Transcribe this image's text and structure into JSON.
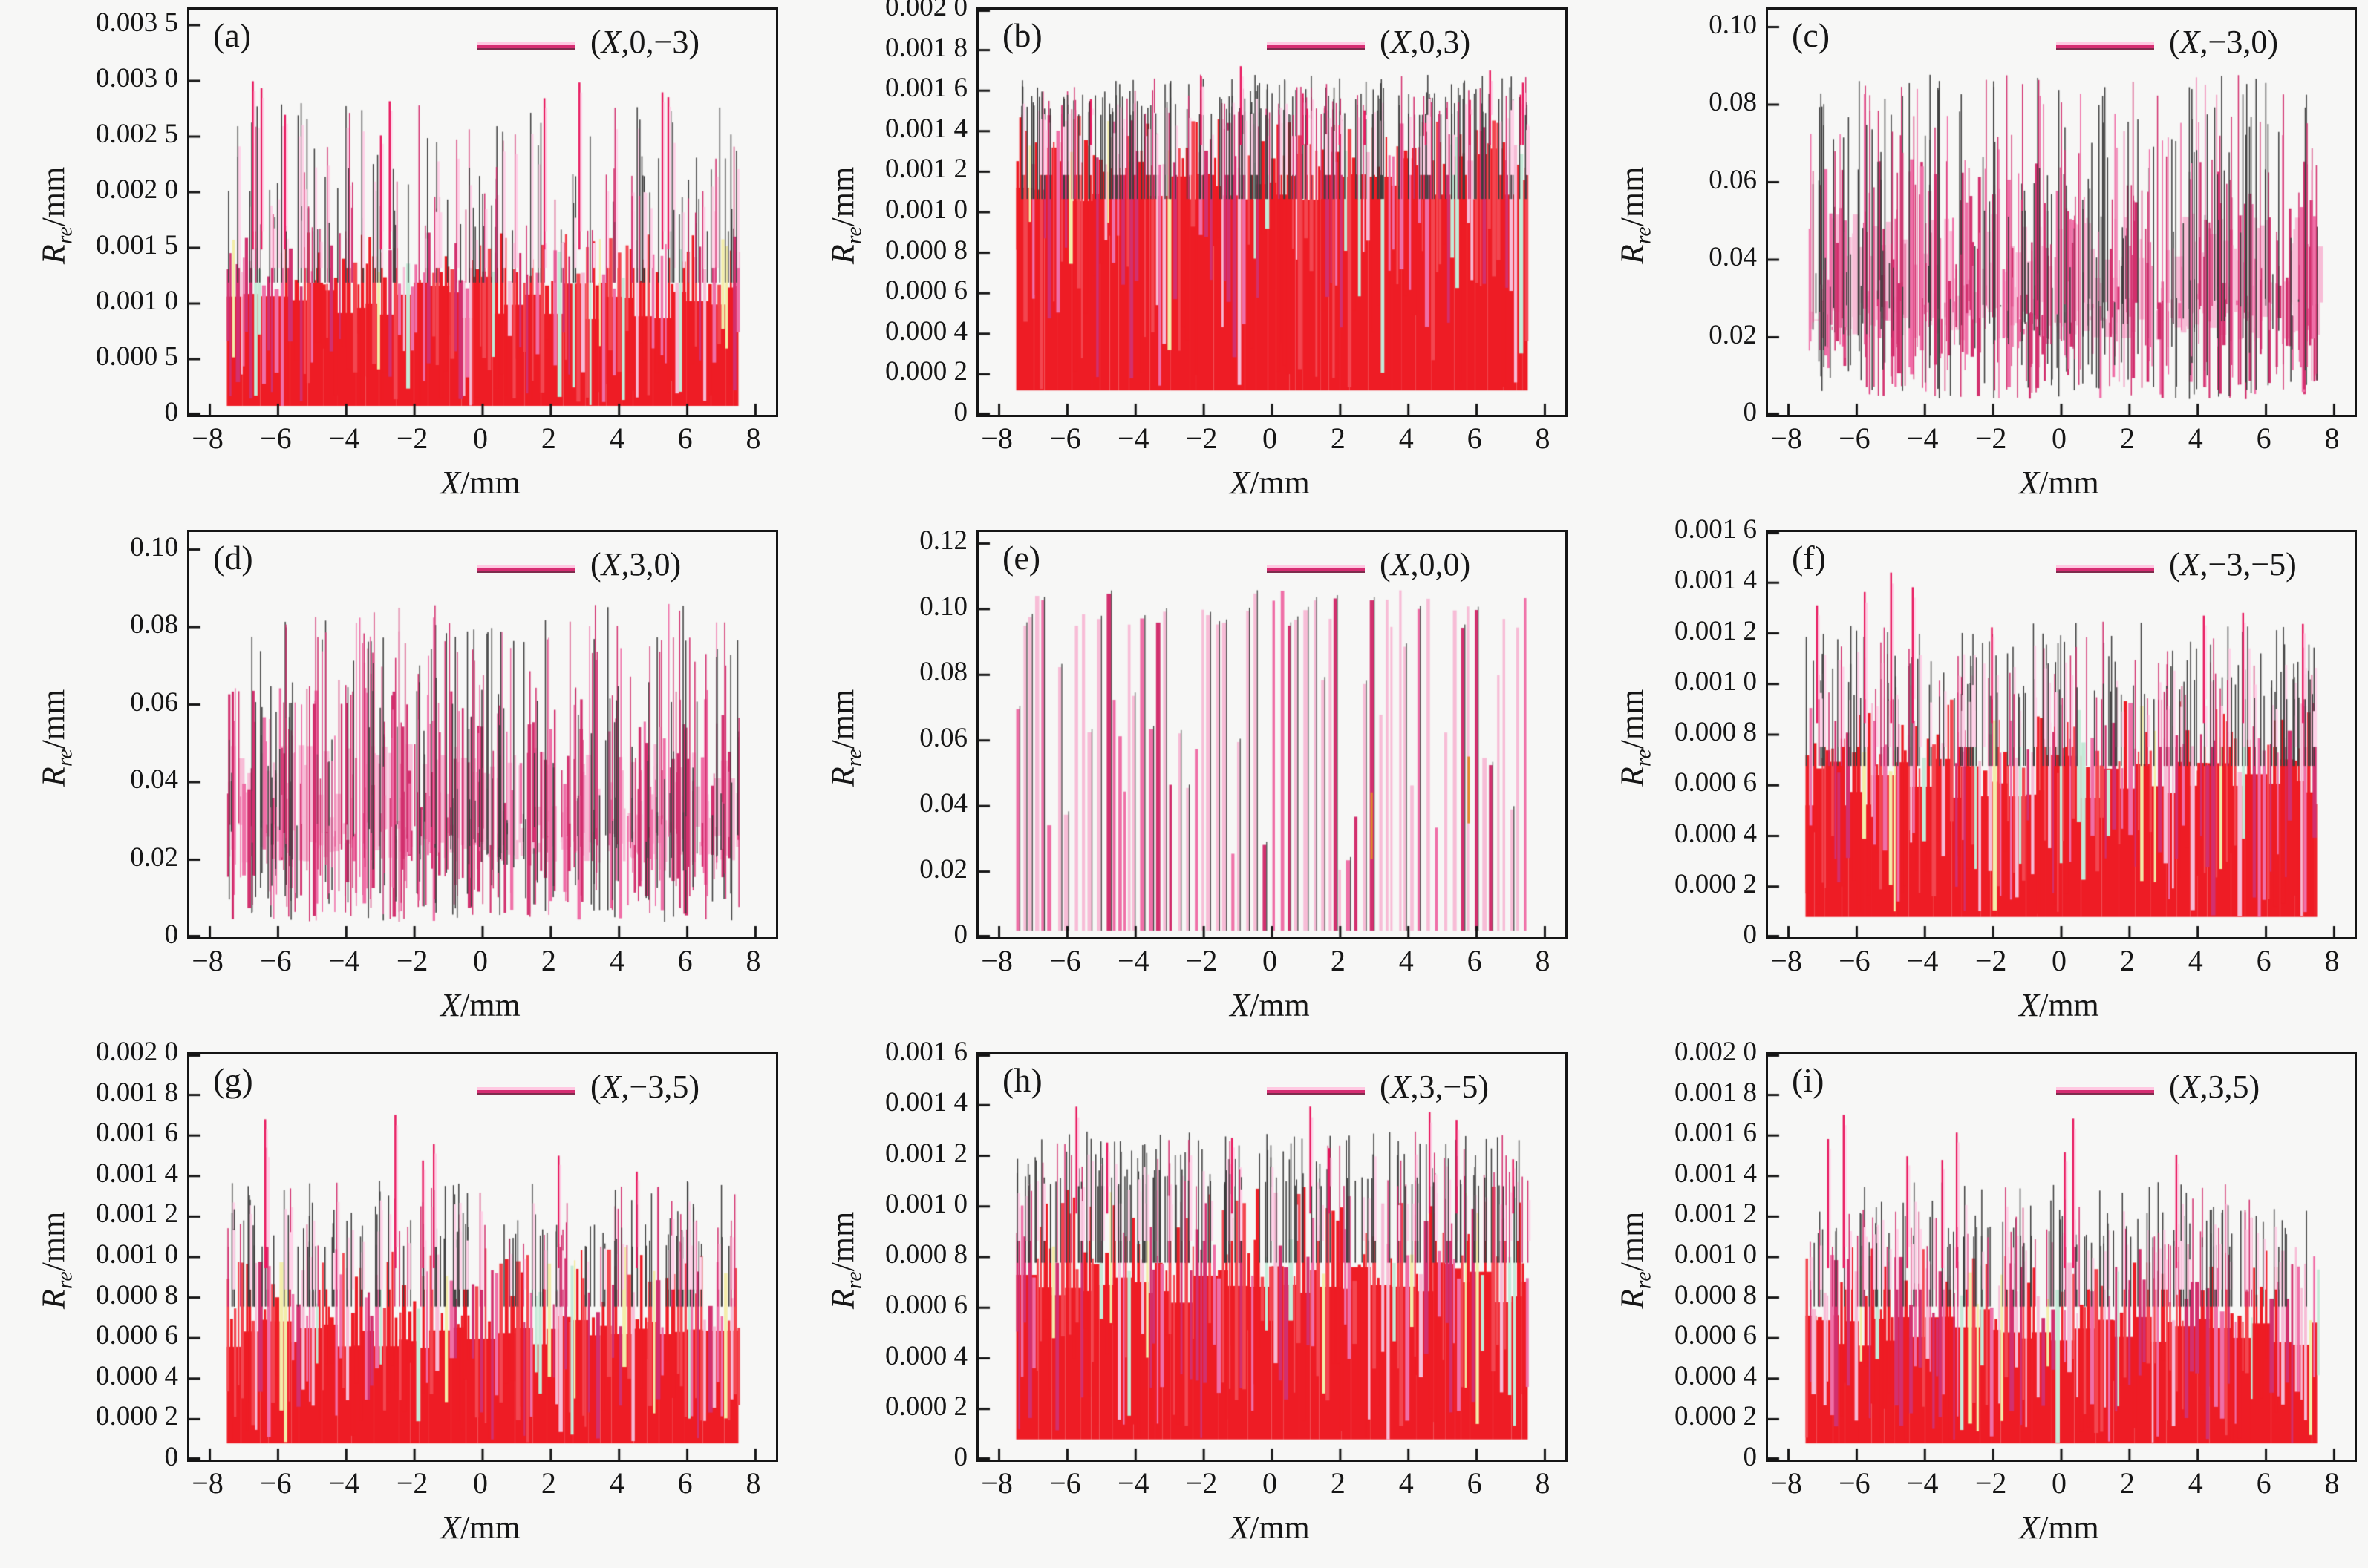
{
  "figure": {
    "background": "#f7f7f6",
    "frame_color": "#151515",
    "y_axis_title": {
      "variable": "R",
      "subscript": "re",
      "unit": "/mm"
    },
    "x_axis_title": {
      "variable": "X",
      "unit": "/mm"
    },
    "x_tick_values": [
      -8,
      -6,
      -4,
      -2,
      0,
      2,
      4,
      6,
      8
    ],
    "x_tick_labels": [
      "−8",
      "−6",
      "−4",
      "−2",
      "0",
      "2",
      "4",
      "6",
      "8"
    ]
  },
  "colors": {
    "red": "#ee1c25",
    "red2": "#f34650",
    "crimson": "#d2306e",
    "pink": "#ef6fa7",
    "lightpink": "#f7bcd6",
    "pinkhalo": "#ffd2e8",
    "paleyellow": "#f3edaa",
    "palecyan": "#c5ead8",
    "dark": "#3d3d3d",
    "accent": "#e8175d",
    "orange": "#e0862c"
  },
  "chart_data": {
    "type": "line",
    "title": "",
    "xlabel": "X/mm",
    "ylabel": "R_re/mm",
    "x_data_range": [
      -7.5,
      7.5
    ],
    "x_axis_range": [
      -8.6,
      8.6
    ],
    "grid": false,
    "legend_position": "upper right inside",
    "panels": [
      {
        "tag": "(a)",
        "legend": "(X,0,−3)",
        "ylim": [
          0,
          0.00364
        ],
        "y_tick_values": [
          0,
          0.0005,
          0.001,
          0.0015,
          0.002,
          0.0025,
          0.003,
          0.0035
        ],
        "y_tick_labels": [
          "0",
          "0.000 5",
          "0.001 0",
          "0.001 5",
          "0.002 0",
          "0.002 5",
          "0.003 0",
          "0.003 5"
        ],
        "signal": {
          "style": "fill",
          "seed": 11,
          "base": 8e-05,
          "solid": [
            0.00085,
            0.00125
          ],
          "band": 0.00165,
          "spikeMax": 0.0028,
          "spikes": 130,
          "tallN": 9,
          "tallMax": 0.00305
        }
      },
      {
        "tag": "(b)",
        "legend": "(X,0,3)",
        "ylim": [
          0,
          0.002
        ],
        "y_tick_values": [
          0,
          0.0002,
          0.0004,
          0.0006,
          0.0008,
          0.001,
          0.0012,
          0.0014,
          0.0016,
          0.0018,
          0.002
        ],
        "y_tick_labels": [
          "0",
          "0.000 2",
          "0.000 4",
          "0.000 6",
          "0.000 8",
          "0.001 0",
          "0.001 2",
          "0.001 4",
          "0.001 6",
          "0.001 8",
          "0.002 0"
        ],
        "signal": {
          "style": "fill",
          "seed": 22,
          "base": 0.00012,
          "solid": [
            0.00105,
            0.00135
          ],
          "band": 0.00148,
          "spikeMax": 0.00168,
          "spikes": 220,
          "tallN": 12,
          "tallMax": 0.00174
        }
      },
      {
        "tag": "(c)",
        "legend": "(X,−3,0)",
        "ylim": [
          0,
          0.1045
        ],
        "y_tick_values": [
          0,
          0.02,
          0.04,
          0.06,
          0.08,
          0.1
        ],
        "y_tick_labels": [
          "0",
          "0.02",
          "0.04",
          "0.06",
          "0.08",
          "0.10"
        ],
        "signal": {
          "style": "spiky",
          "seed": 33,
          "botMin": 0.004,
          "botMax": 0.03,
          "topMin": 0.022,
          "topMax": 0.088,
          "bandLo": 0.024,
          "bandHi": 0.052
        }
      },
      {
        "tag": "(d)",
        "legend": "(X,3,0)",
        "ylim": [
          0,
          0.1045
        ],
        "y_tick_values": [
          0,
          0.02,
          0.04,
          0.06,
          0.08,
          0.1
        ],
        "y_tick_labels": [
          "0",
          "0.02",
          "0.04",
          "0.06",
          "0.08",
          "0.10"
        ],
        "signal": {
          "style": "spiky",
          "seed": 44,
          "botMin": 0.004,
          "botMax": 0.03,
          "topMin": 0.022,
          "topMax": 0.086,
          "bandLo": 0.024,
          "bandHi": 0.05
        }
      },
      {
        "tag": "(e)",
        "legend": "(X,0,0)",
        "ylim": [
          0,
          0.1235
        ],
        "y_tick_values": [
          0,
          0.02,
          0.04,
          0.06,
          0.08,
          0.1,
          0.12
        ],
        "y_tick_labels": [
          "0",
          "0.02",
          "0.04",
          "0.06",
          "0.08",
          "0.10",
          "0.12"
        ],
        "signal": {
          "style": "comb",
          "seed": 55,
          "base": 0.002,
          "plateauLo": 0.094,
          "plateauHi": 0.106,
          "lowLo": 0.02,
          "lowHi": 0.09
        }
      },
      {
        "tag": "(f)",
        "legend": "(X,−3,−5)",
        "ylim": [
          0,
          0.0016
        ],
        "y_tick_values": [
          0,
          0.0002,
          0.0004,
          0.0006,
          0.0008,
          0.001,
          0.0012,
          0.0014,
          0.0016
        ],
        "y_tick_labels": [
          "0",
          "0.000 2",
          "0.000 4",
          "0.000 6",
          "0.000 8",
          "0.001 0",
          "0.001 2",
          "0.001 4",
          "0.001 6"
        ],
        "signal": {
          "style": "fill",
          "seed": 66,
          "base": 8e-05,
          "solid": [
            0.00052,
            0.00072
          ],
          "band": 0.00094,
          "spikeMax": 0.00125,
          "spikes": 170,
          "tallN": 8,
          "tallMax": 0.00145
        }
      },
      {
        "tag": "(g)",
        "legend": "(X,−3,5)",
        "ylim": [
          0,
          0.002
        ],
        "y_tick_values": [
          0,
          0.0002,
          0.0004,
          0.0006,
          0.0008,
          0.001,
          0.0012,
          0.0014,
          0.0016,
          0.0018,
          0.002
        ],
        "y_tick_labels": [
          "0",
          "0.000 2",
          "0.000 4",
          "0.000 6",
          "0.000 8",
          "0.001 0",
          "0.001 2",
          "0.001 4",
          "0.001 6",
          "0.001 8",
          "0.002 0"
        ],
        "signal": {
          "style": "fill",
          "seed": 77,
          "base": 8e-05,
          "solid": [
            0.00055,
            0.00072
          ],
          "band": 0.00105,
          "spikeMax": 0.00138,
          "spikes": 150,
          "tallN": 7,
          "tallMax": 0.00172
        }
      },
      {
        "tag": "(h)",
        "legend": "(X,3,−5)",
        "ylim": [
          0,
          0.0016
        ],
        "y_tick_values": [
          0,
          0.0002,
          0.0004,
          0.0006,
          0.0008,
          0.001,
          0.0012,
          0.0014,
          0.0016
        ],
        "y_tick_labels": [
          "0",
          "0.000 2",
          "0.000 4",
          "0.000 6",
          "0.000 8",
          "0.001 0",
          "0.001 2",
          "0.001 4",
          "0.001 6"
        ],
        "signal": {
          "style": "fill",
          "seed": 88,
          "base": 8e-05,
          "solid": [
            0.00062,
            0.00078
          ],
          "band": 0.00108,
          "spikeMax": 0.0013,
          "spikes": 180,
          "tallN": 8,
          "tallMax": 0.00142
        }
      },
      {
        "tag": "(i)",
        "legend": "(X,3,5)",
        "ylim": [
          0,
          0.002
        ],
        "y_tick_values": [
          0,
          0.0002,
          0.0004,
          0.0006,
          0.0008,
          0.001,
          0.0012,
          0.0014,
          0.0016,
          0.0018,
          0.002
        ],
        "y_tick_labels": [
          "0",
          "0.000 2",
          "0.000 4",
          "0.000 6",
          "0.000 8",
          "0.001 0",
          "0.001 2",
          "0.001 4",
          "0.001 6",
          "0.001 8",
          "0.002 0"
        ],
        "signal": {
          "style": "fill",
          "seed": 99,
          "base": 8e-05,
          "solid": [
            0.00055,
            0.00075
          ],
          "band": 0.00105,
          "spikeMax": 0.00138,
          "spikes": 155,
          "tallN": 8,
          "tallMax": 0.00172
        }
      }
    ]
  }
}
